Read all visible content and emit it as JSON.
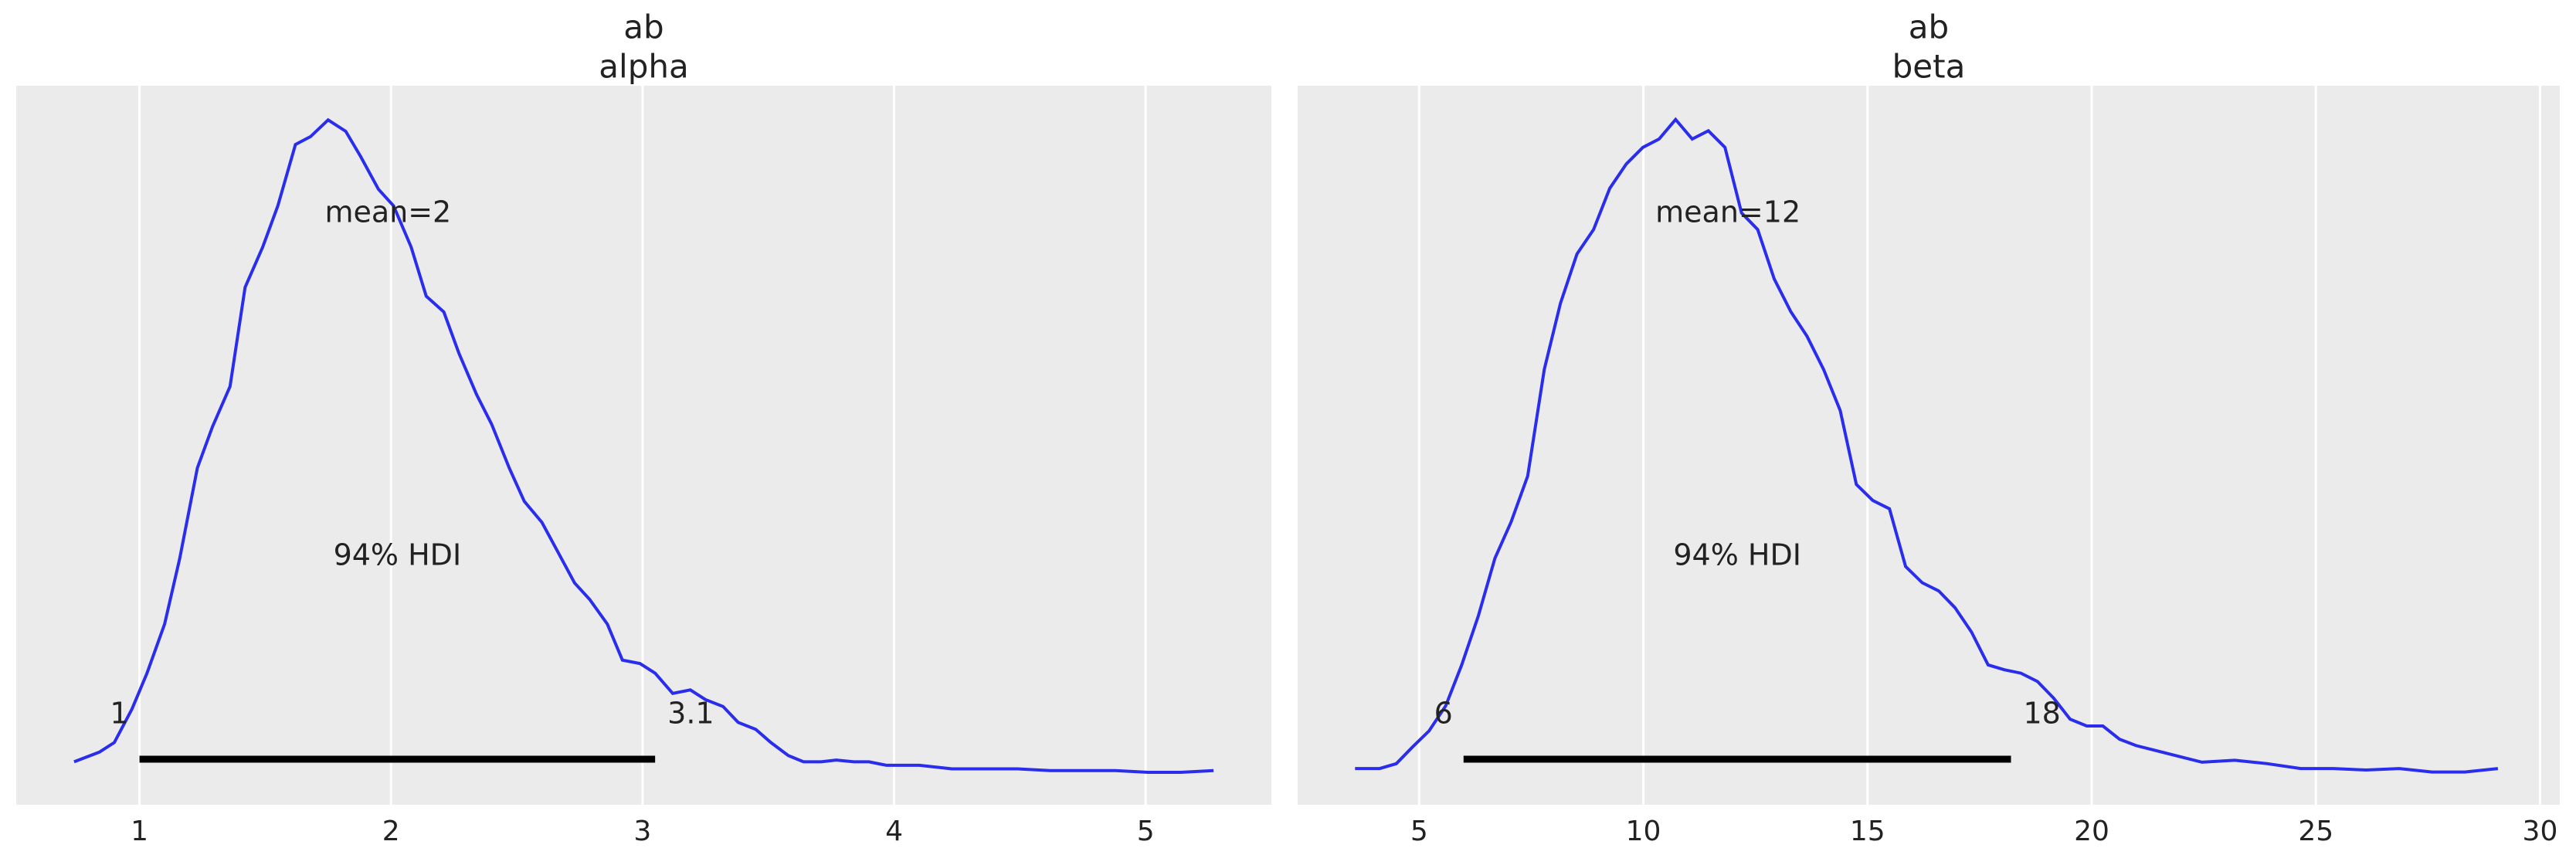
{
  "chart_data": [
    {
      "type": "density",
      "title": "ab",
      "subtitle": "alpha",
      "color": "#2a2eec",
      "grid": true,
      "x": [
        0.74,
        0.84,
        0.9,
        0.97,
        1.03,
        1.1,
        1.16,
        1.23,
        1.29,
        1.36,
        1.42,
        1.49,
        1.55,
        1.62,
        1.68,
        1.75,
        1.82,
        1.88,
        1.95,
        2.01,
        2.08,
        2.14,
        2.21,
        2.27,
        2.34,
        2.4,
        2.47,
        2.53,
        2.6,
        2.66,
        2.73,
        2.79,
        2.86,
        2.92,
        2.99,
        3.05,
        3.12,
        3.19,
        3.25,
        3.32,
        3.38,
        3.45,
        3.51,
        3.58,
        3.64,
        3.71,
        3.77,
        3.84,
        3.9,
        3.97,
        4.1,
        4.23,
        4.36,
        4.49,
        4.62,
        4.75,
        4.88,
        5.01,
        5.14,
        5.27
      ],
      "values": [
        0.049,
        0.06,
        0.071,
        0.109,
        0.15,
        0.206,
        0.281,
        0.384,
        0.431,
        0.477,
        0.59,
        0.636,
        0.683,
        0.753,
        0.762,
        0.781,
        0.768,
        0.739,
        0.702,
        0.683,
        0.636,
        0.58,
        0.562,
        0.515,
        0.468,
        0.434,
        0.384,
        0.346,
        0.322,
        0.29,
        0.253,
        0.234,
        0.206,
        0.165,
        0.161,
        0.15,
        0.127,
        0.131,
        0.12,
        0.112,
        0.094,
        0.086,
        0.071,
        0.056,
        0.049,
        0.049,
        0.051,
        0.049,
        0.049,
        0.045,
        0.045,
        0.041,
        0.041,
        0.041,
        0.039,
        0.039,
        0.039,
        0.037,
        0.037,
        0.039
      ],
      "xlim": [
        0.51,
        5.5
      ],
      "xticks": [
        1,
        2,
        3,
        4,
        5
      ],
      "ylim": [
        0,
        0.82
      ],
      "hdi": [
        1.0,
        3.05
      ],
      "hdi_labels": [
        "1",
        "3.1"
      ],
      "annotations": {
        "mean": "mean=2",
        "hdi": "94% HDI"
      }
    },
    {
      "type": "density",
      "title": "ab",
      "subtitle": "beta",
      "color": "#2a2eec",
      "grid": true,
      "x": [
        3.57,
        4.12,
        4.49,
        4.85,
        5.22,
        5.59,
        5.95,
        6.32,
        6.69,
        7.05,
        7.42,
        7.79,
        8.15,
        8.52,
        8.89,
        9.25,
        9.62,
        9.99,
        10.35,
        10.72,
        11.09,
        11.45,
        11.82,
        12.19,
        12.55,
        12.92,
        13.29,
        13.65,
        14.02,
        14.39,
        14.75,
        15.12,
        15.49,
        15.85,
        16.22,
        16.59,
        16.95,
        17.32,
        17.69,
        18.05,
        18.42,
        18.79,
        19.15,
        19.52,
        19.89,
        20.25,
        20.62,
        20.99,
        21.72,
        22.46,
        23.19,
        23.92,
        24.66,
        25.39,
        26.12,
        26.86,
        27.59,
        28.32,
        29.06
      ],
      "values": [
        0.0074,
        0.0074,
        0.0084,
        0.0118,
        0.0151,
        0.0202,
        0.0286,
        0.0386,
        0.0504,
        0.0578,
        0.0672,
        0.089,
        0.1025,
        0.1126,
        0.1176,
        0.126,
        0.131,
        0.1344,
        0.1361,
        0.1401,
        0.1361,
        0.1378,
        0.1344,
        0.121,
        0.1176,
        0.1075,
        0.1008,
        0.0958,
        0.089,
        0.0806,
        0.0655,
        0.0622,
        0.0605,
        0.0487,
        0.0454,
        0.0437,
        0.0403,
        0.0353,
        0.0286,
        0.0276,
        0.0269,
        0.0252,
        0.0218,
        0.0175,
        0.0161,
        0.0161,
        0.0134,
        0.0121,
        0.0104,
        0.0087,
        0.0091,
        0.0084,
        0.0074,
        0.0074,
        0.0071,
        0.0074,
        0.0067,
        0.0067,
        0.0074
      ],
      "xlim": [
        2.29,
        30.44
      ],
      "xticks": [
        5,
        10,
        15,
        20,
        25,
        30
      ],
      "ylim": [
        0,
        0.147
      ],
      "hdi": [
        5.99,
        18.2
      ],
      "hdi_labels": [
        "6",
        "18"
      ],
      "annotations": {
        "mean": "mean=12",
        "hdi": "94% HDI"
      }
    }
  ]
}
